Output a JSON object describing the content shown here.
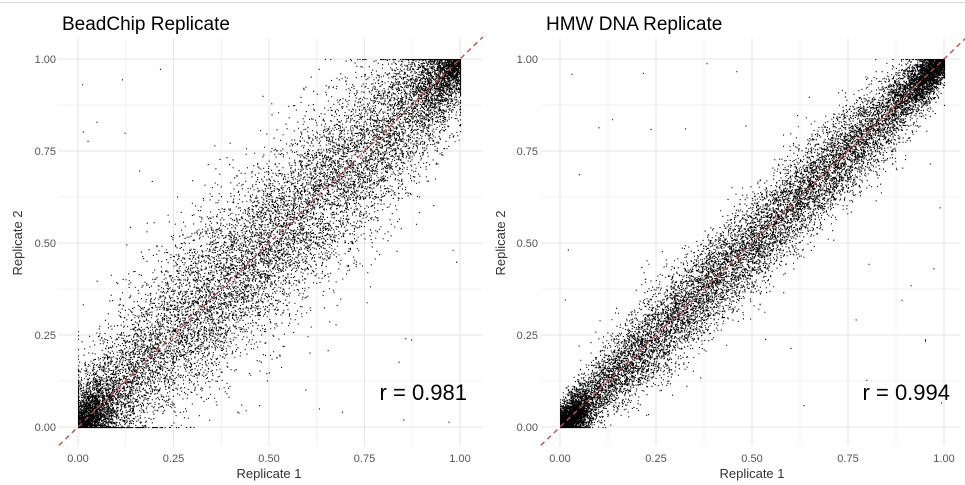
{
  "chart_data": [
    {
      "type": "scatter",
      "title": "BeadChip Replicate",
      "xlabel": "Replicate 1",
      "ylabel": "Replicate 2",
      "xlim": [
        0,
        1
      ],
      "ylim": [
        0,
        1
      ],
      "xticks": [
        "0.00",
        "0.25",
        "0.50",
        "0.75",
        "1.00"
      ],
      "yticks": [
        "0.00",
        "0.25",
        "0.50",
        "0.75",
        "1.00"
      ],
      "grid": true,
      "annotation": "r = 0.981",
      "reference_line": {
        "style": "dashed",
        "color": "#c0504d",
        "slope": 1,
        "intercept": 0
      },
      "point_color": "#000000",
      "spread_estimate": 0.1
    },
    {
      "type": "scatter",
      "title": "HMW DNA Replicate",
      "xlabel": "Replicate 1",
      "ylabel": "Replicate 2",
      "xlim": [
        0,
        1
      ],
      "ylim": [
        0,
        1
      ],
      "xticks": [
        "0.00",
        "0.25",
        "0.50",
        "0.75",
        "1.00"
      ],
      "yticks": [
        "0.00",
        "0.25",
        "0.50",
        "0.75",
        "1.00"
      ],
      "grid": true,
      "annotation": "r = 0.994",
      "reference_line": {
        "style": "dashed",
        "color": "#c0504d",
        "slope": 1,
        "intercept": 0
      },
      "point_color": "#000000",
      "spread_estimate": 0.055
    }
  ]
}
